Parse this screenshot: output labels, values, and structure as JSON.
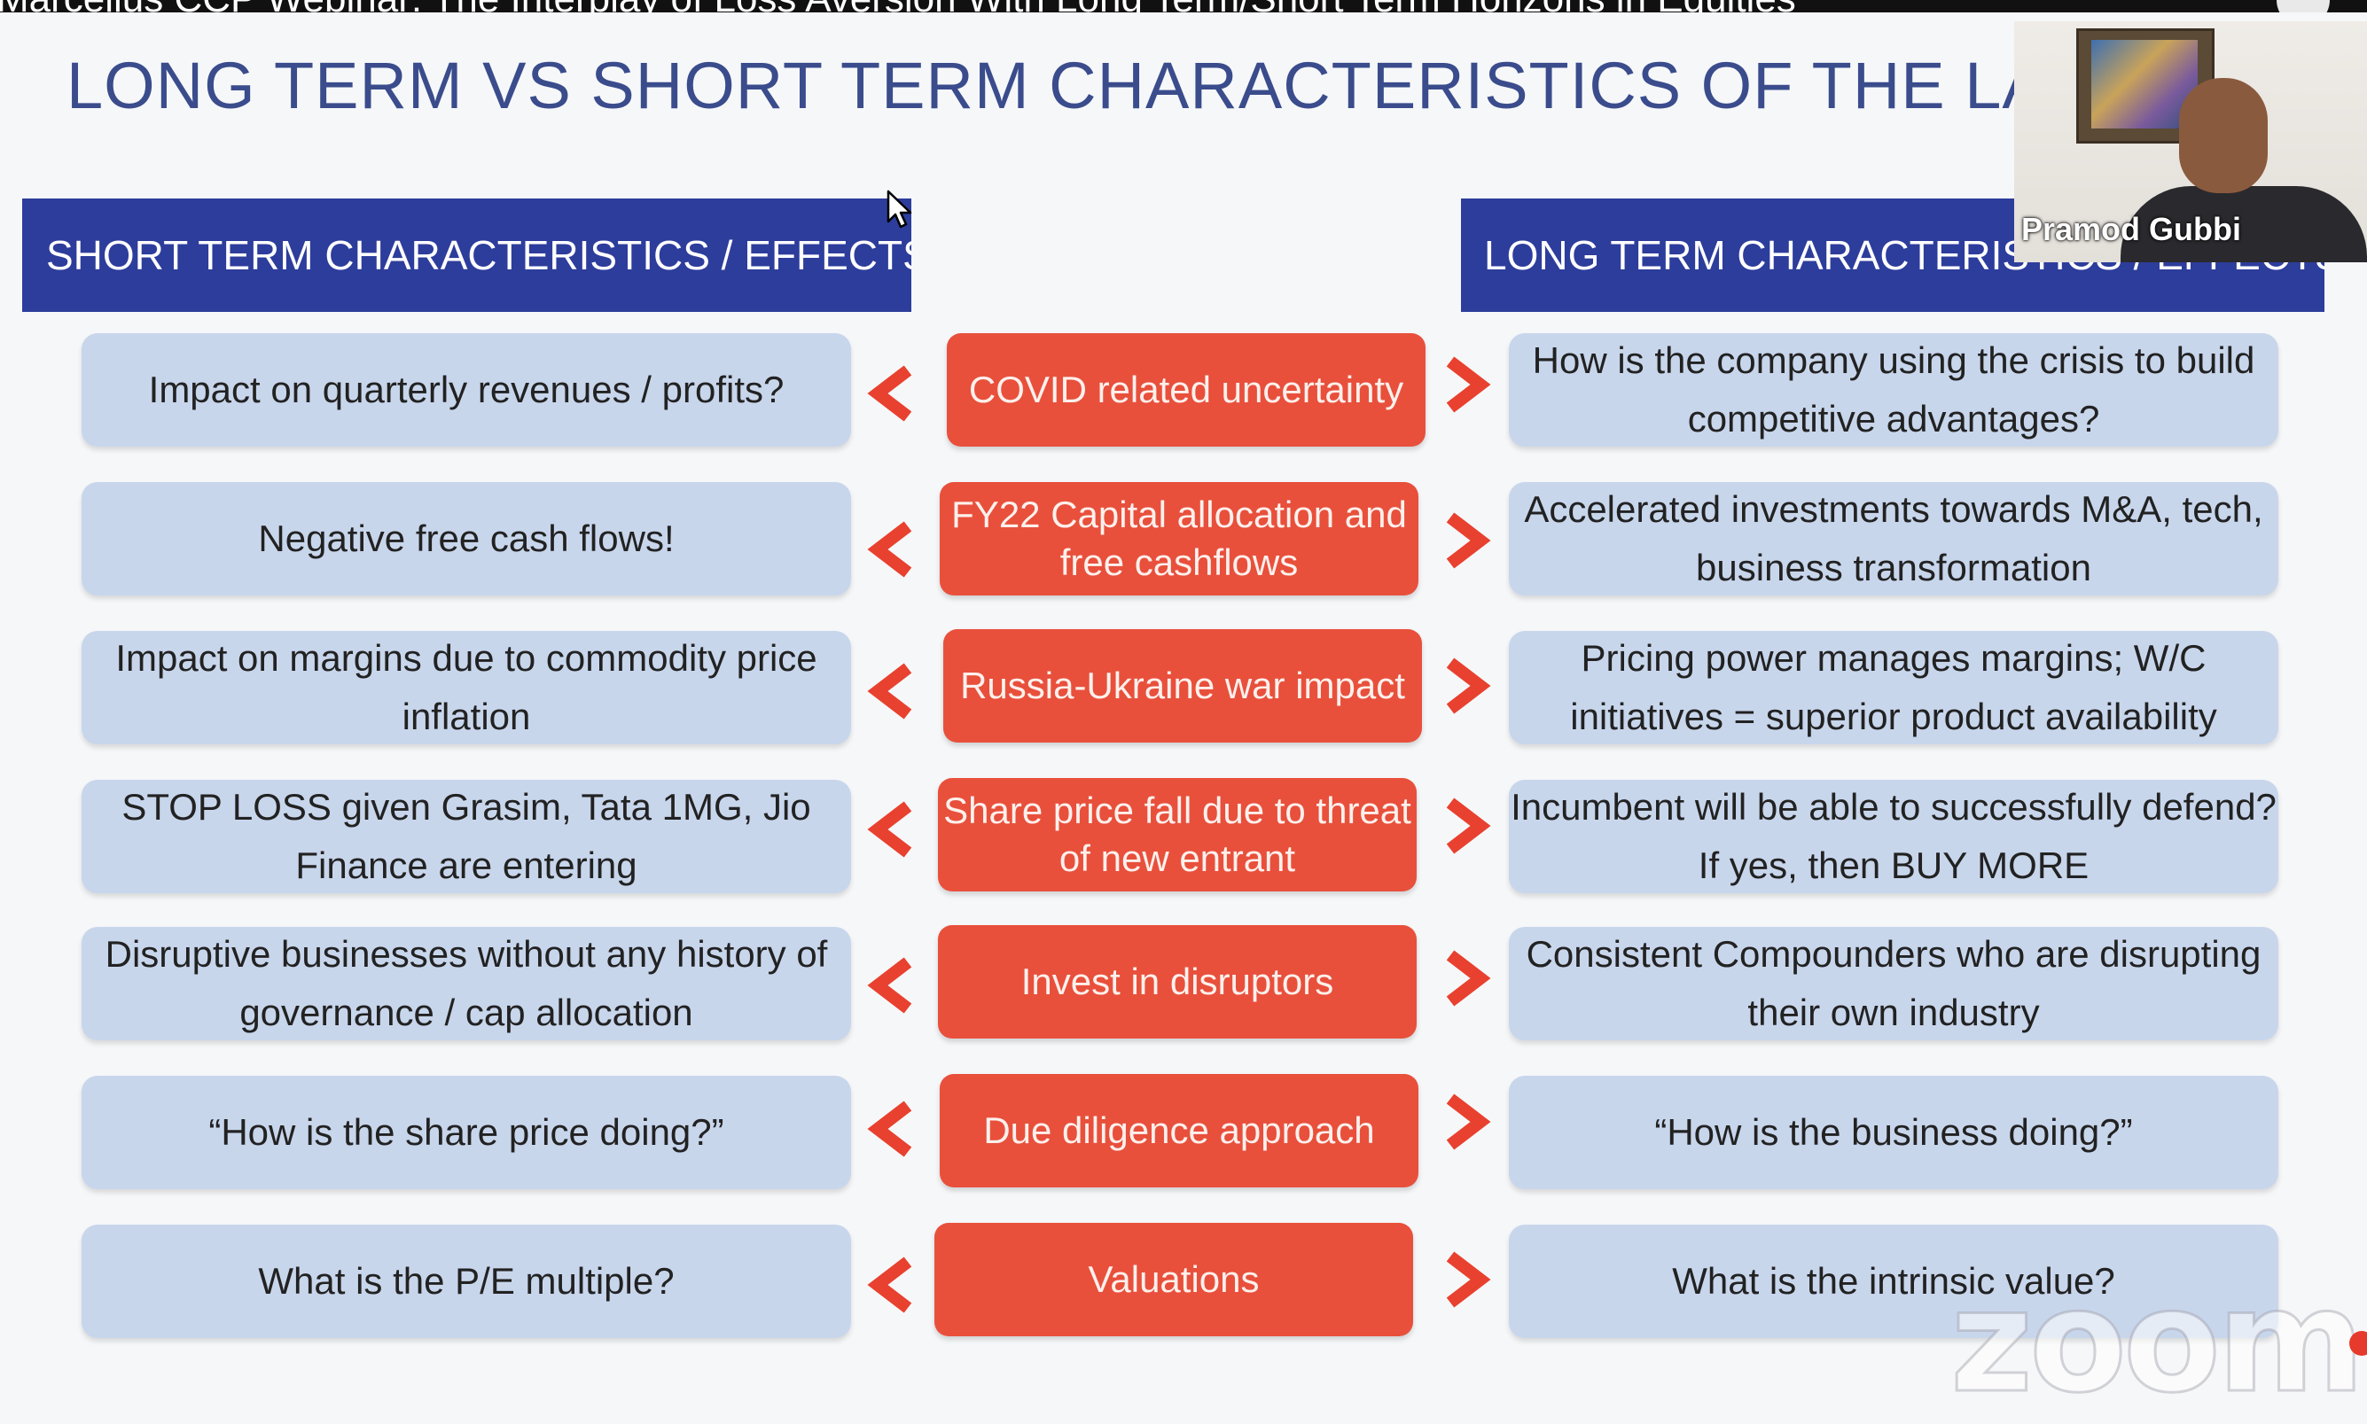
{
  "video": {
    "title_bar_text": "Marcellus CCP Webinar: The Interplay of Loss Aversion With Long Term/Short Term Horizons in Equities",
    "participant_name": "Pramod Gubbi",
    "watermark": "zoom"
  },
  "slide": {
    "title": "LONG TERM VS SHORT TERM CHARACTERISTICS OF THE LAST FEW",
    "short_term_header": "SHORT TERM CHARACTERISTICS / EFFECTS",
    "long_term_header": "LONG TERM CHARACTERISTICS / EFFECTS",
    "rows": [
      {
        "short": "Impact on quarterly revenues / profits?",
        "middle": "COVID related uncertainty",
        "long": "How is the company using the crisis to build competitive advantages?"
      },
      {
        "short": "Negative free cash flows!",
        "middle": "FY22 Capital allocation and free cashflows",
        "long": "Accelerated investments towards M&A, tech, business transformation"
      },
      {
        "short": "Impact on margins due to commodity price inflation",
        "middle": "Russia-Ukraine war impact",
        "long": "Pricing power manages margins; W/C initiatives = superior product availability"
      },
      {
        "short": "STOP LOSS given Grasim, Tata 1MG, Jio Finance are entering",
        "middle": "Share price fall due to threat of new entrant",
        "long": "Incumbent will be able to successfully defend? If yes, then BUY MORE"
      },
      {
        "short": "Disruptive businesses without any history of governance / cap allocation",
        "middle": "Invest in disruptors",
        "long": "Consistent Compounders who are disrupting their own industry"
      },
      {
        "short": "“How is the share price doing?”",
        "middle": "Due diligence approach",
        "long": "“How is the business doing?”"
      },
      {
        "short": "What is the P/E multiple?",
        "middle": "Valuations",
        "long": "What is the intrinsic value?"
      }
    ]
  },
  "colors": {
    "title": "#3a4c8c",
    "header_bg": "#2d3d9c",
    "side_box": "#c8d6ec",
    "middle_box": "#e8503c",
    "arrow": "#e8412f"
  }
}
